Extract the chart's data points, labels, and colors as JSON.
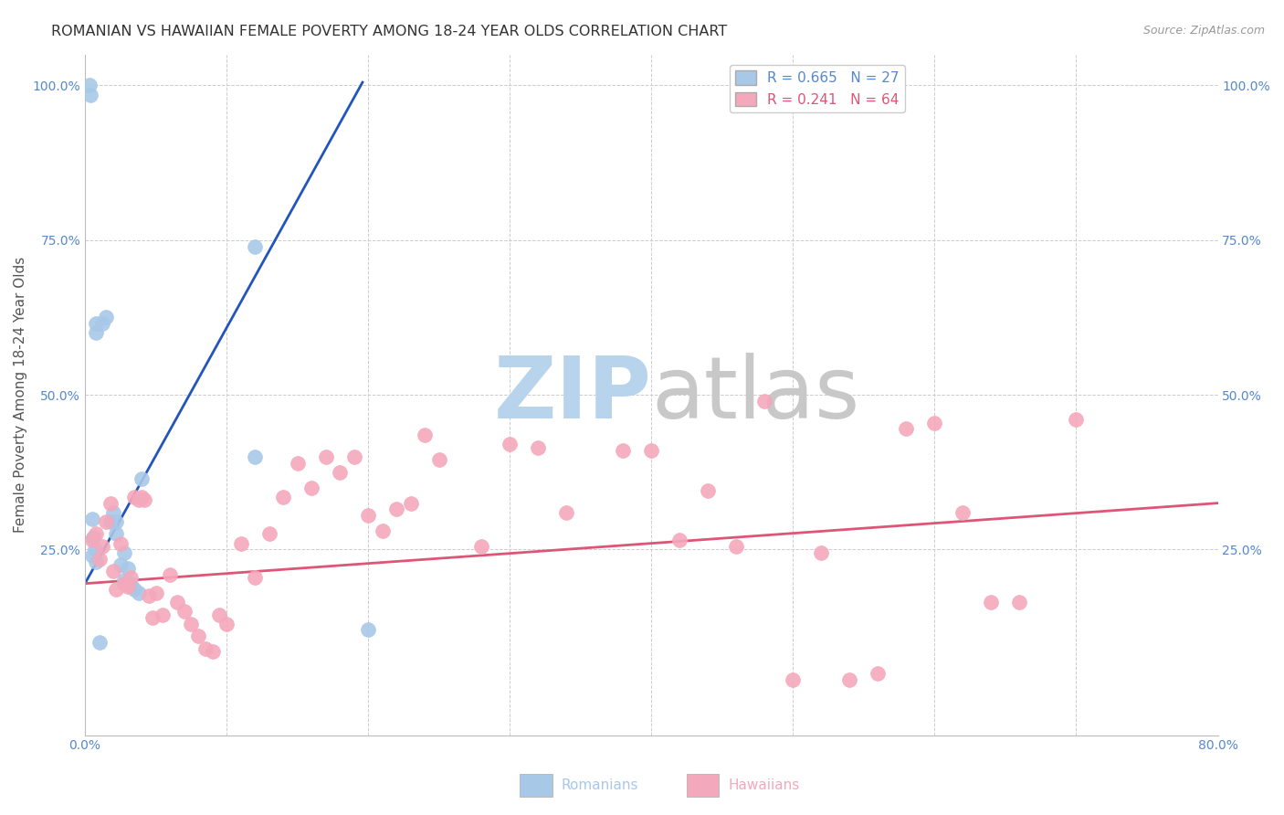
{
  "title": "ROMANIAN VS HAWAIIAN FEMALE POVERTY AMONG 18-24 YEAR OLDS CORRELATION CHART",
  "source": "Source: ZipAtlas.com",
  "ylabel": "Female Poverty Among 18-24 Year Olds",
  "xlim": [
    0.0,
    0.8
  ],
  "ylim": [
    -0.05,
    1.05
  ],
  "xticks": [
    0.0,
    0.1,
    0.2,
    0.3,
    0.4,
    0.5,
    0.6,
    0.7,
    0.8
  ],
  "xticklabels": [
    "0.0%",
    "",
    "",
    "",
    "",
    "",
    "",
    "",
    "80.0%"
  ],
  "yticks": [
    0.0,
    0.25,
    0.5,
    0.75,
    1.0
  ],
  "yticklabels_left": [
    "",
    "25.0%",
    "50.0%",
    "75.0%",
    "100.0%"
  ],
  "yticklabels_right": [
    "",
    "25.0%",
    "50.0%",
    "75.0%",
    "100.0%"
  ],
  "legend_label_1": "R = 0.665   N = 27",
  "legend_label_2": "R = 0.241   N = 64",
  "romanians_x": [
    0.005,
    0.008,
    0.008,
    0.01,
    0.012,
    0.015,
    0.018,
    0.02,
    0.022,
    0.022,
    0.025,
    0.028,
    0.028,
    0.03,
    0.032,
    0.035,
    0.038,
    0.04,
    0.12,
    0.12,
    0.003,
    0.004,
    0.005,
    0.006,
    0.007,
    0.008,
    0.2
  ],
  "romanians_y": [
    0.3,
    0.6,
    0.615,
    0.1,
    0.615,
    0.625,
    0.295,
    0.31,
    0.275,
    0.295,
    0.225,
    0.245,
    0.2,
    0.22,
    0.195,
    0.185,
    0.18,
    0.365,
    0.74,
    0.4,
    1.0,
    0.985,
    0.24,
    0.27,
    0.25,
    0.23,
    0.12
  ],
  "hawaiians_x": [
    0.005,
    0.008,
    0.01,
    0.012,
    0.015,
    0.018,
    0.02,
    0.022,
    0.025,
    0.028,
    0.03,
    0.032,
    0.035,
    0.038,
    0.04,
    0.042,
    0.045,
    0.048,
    0.05,
    0.055,
    0.06,
    0.065,
    0.07,
    0.075,
    0.08,
    0.085,
    0.09,
    0.095,
    0.1,
    0.11,
    0.12,
    0.13,
    0.14,
    0.15,
    0.16,
    0.17,
    0.18,
    0.19,
    0.2,
    0.21,
    0.22,
    0.23,
    0.24,
    0.25,
    0.28,
    0.3,
    0.32,
    0.34,
    0.38,
    0.4,
    0.42,
    0.44,
    0.46,
    0.48,
    0.5,
    0.52,
    0.54,
    0.56,
    0.58,
    0.6,
    0.62,
    0.64,
    0.66,
    0.7
  ],
  "hawaiians_y": [
    0.265,
    0.275,
    0.235,
    0.255,
    0.295,
    0.325,
    0.215,
    0.185,
    0.26,
    0.195,
    0.19,
    0.205,
    0.335,
    0.33,
    0.335,
    0.33,
    0.175,
    0.14,
    0.18,
    0.145,
    0.21,
    0.165,
    0.15,
    0.13,
    0.11,
    0.09,
    0.085,
    0.145,
    0.13,
    0.26,
    0.205,
    0.275,
    0.335,
    0.39,
    0.35,
    0.4,
    0.375,
    0.4,
    0.305,
    0.28,
    0.315,
    0.325,
    0.435,
    0.395,
    0.255,
    0.42,
    0.415,
    0.31,
    0.41,
    0.41,
    0.265,
    0.345,
    0.255,
    0.49,
    0.04,
    0.245,
    0.04,
    0.05,
    0.445,
    0.455,
    0.31,
    0.165,
    0.165,
    0.46
  ],
  "romanian_line_x": [
    0.0,
    0.196
  ],
  "romanian_line_y": [
    0.195,
    1.005
  ],
  "hawaiian_line_x": [
    0.0,
    0.8
  ],
  "hawaiian_line_y": [
    0.195,
    0.325
  ],
  "dot_size": 130,
  "romanian_color": "#a8c8e8",
  "hawaiian_color": "#f4a8bc",
  "romanian_edge_color": "#a8c8e8",
  "hawaiian_edge_color": "#f4a8bc",
  "romanian_line_color": "#2255bb",
  "hawaiian_line_color": "#dd5577",
  "watermark_zip_color": "#b8d4ed",
  "watermark_atlas_color": "#c8c8c8",
  "background_color": "#ffffff",
  "grid_color": "#cccccc",
  "title_fontsize": 11.5,
  "axis_label_fontsize": 11,
  "tick_fontsize": 10,
  "legend_fontsize": 11,
  "source_fontsize": 9,
  "tick_color": "#5588cc",
  "axis_label_color": "#555555"
}
